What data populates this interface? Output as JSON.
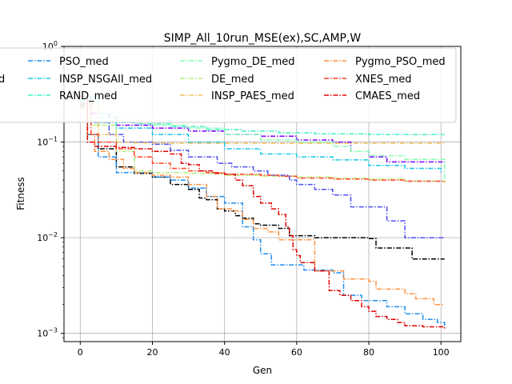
{
  "chart_data": {
    "type": "line",
    "title": "SIMP_All_10run_MSE(ex),SC,AMP,W",
    "xlabel": "Gen",
    "ylabel": "Fitness",
    "xlim": [
      -4.5,
      105.5
    ],
    "ylim": [
      0.00082,
      1.0
    ],
    "yscale": "log",
    "grid": true,
    "legend_position": "top",
    "x_ticks": [
      0,
      20,
      40,
      60,
      80,
      100
    ],
    "y_ticks": [
      {
        "value": 0.001,
        "base": "10",
        "exp": "−3"
      },
      {
        "value": 0.01,
        "base": "10",
        "exp": "−2"
      },
      {
        "value": 0.1,
        "base": "10",
        "exp": "−1"
      },
      {
        "value": 1,
        "base": "10",
        "exp": "0"
      }
    ],
    "series": [
      {
        "name": "",
        "color": "#000000",
        "dash": "solid-dot",
        "points": [
          [
            0,
            0.25
          ],
          [
            2,
            0.12
          ],
          [
            5,
            0.085
          ],
          [
            10,
            0.055
          ],
          [
            15,
            0.047
          ],
          [
            20,
            0.043
          ],
          [
            25,
            0.036
          ],
          [
            30,
            0.032
          ],
          [
            33,
            0.026
          ],
          [
            35,
            0.025
          ],
          [
            38,
            0.02
          ],
          [
            40,
            0.019
          ],
          [
            43,
            0.017
          ],
          [
            45,
            0.016
          ],
          [
            48,
            0.014
          ],
          [
            50,
            0.0135
          ],
          [
            55,
            0.0125
          ],
          [
            58,
            0.0105
          ],
          [
            60,
            0.0105
          ],
          [
            65,
            0.01
          ],
          [
            80,
            0.0098
          ],
          [
            82,
            0.0078
          ],
          [
            90,
            0.0078
          ],
          [
            92,
            0.006
          ],
          [
            101,
            0.006
          ]
        ]
      },
      {
        "name": "",
        "color": "#7a00ff",
        "dash": "solid-dot",
        "points": [
          [
            0,
            0.3
          ],
          [
            3,
            0.2
          ],
          [
            8,
            0.18
          ],
          [
            10,
            0.15
          ],
          [
            20,
            0.14
          ],
          [
            30,
            0.13
          ],
          [
            40,
            0.12
          ],
          [
            50,
            0.115
          ],
          [
            60,
            0.105
          ],
          [
            70,
            0.1
          ],
          [
            75,
            0.08
          ],
          [
            80,
            0.07
          ],
          [
            85,
            0.062
          ],
          [
            95,
            0.062
          ],
          [
            101,
            0.06
          ]
        ]
      },
      {
        "name": "",
        "color": "#4d4df5",
        "dash": "solid-dot",
        "points": [
          [
            0,
            0.28
          ],
          [
            3,
            0.16
          ],
          [
            8,
            0.12
          ],
          [
            12,
            0.1
          ],
          [
            20,
            0.095
          ],
          [
            25,
            0.082
          ],
          [
            30,
            0.07
          ],
          [
            38,
            0.06
          ],
          [
            42,
            0.055
          ],
          [
            48,
            0.05
          ],
          [
            52,
            0.045
          ],
          [
            58,
            0.04
          ],
          [
            60,
            0.036
          ],
          [
            65,
            0.032
          ],
          [
            70,
            0.028
          ],
          [
            75,
            0.021
          ],
          [
            80,
            0.021
          ],
          [
            85,
            0.015
          ],
          [
            88,
            0.015
          ],
          [
            90,
            0.01
          ],
          [
            101,
            0.01
          ]
        ]
      },
      {
        "name": "PSO_med",
        "color": "#1f8ef0",
        "dash": "solid-dot",
        "points": [
          [
            0,
            0.24
          ],
          [
            2,
            0.12
          ],
          [
            5,
            0.07
          ],
          [
            10,
            0.048
          ],
          [
            20,
            0.043
          ],
          [
            25,
            0.04
          ],
          [
            30,
            0.033
          ],
          [
            35,
            0.027
          ],
          [
            40,
            0.023
          ],
          [
            45,
            0.013
          ],
          [
            48,
            0.0095
          ],
          [
            50,
            0.0068
          ],
          [
            53,
            0.0052
          ],
          [
            60,
            0.0052
          ],
          [
            62,
            0.0046
          ],
          [
            70,
            0.0043
          ],
          [
            73,
            0.0025
          ],
          [
            78,
            0.0022
          ],
          [
            85,
            0.0019
          ],
          [
            90,
            0.0016
          ],
          [
            95,
            0.0014
          ],
          [
            99,
            0.0013
          ],
          [
            101,
            0.00115
          ]
        ]
      },
      {
        "name": "INSP_NSGAII_med",
        "color": "#18c8e8",
        "dash": "solid-dot",
        "points": [
          [
            0,
            0.26
          ],
          [
            3,
            0.16
          ],
          [
            10,
            0.14
          ],
          [
            20,
            0.12
          ],
          [
            30,
            0.1
          ],
          [
            40,
            0.085
          ],
          [
            50,
            0.075
          ],
          [
            60,
            0.07
          ],
          [
            70,
            0.065
          ],
          [
            80,
            0.057
          ],
          [
            90,
            0.053
          ],
          [
            97,
            0.053
          ],
          [
            100,
            0.047
          ]
        ]
      },
      {
        "name": "RAND_med",
        "color": "#40f0c8",
        "dash": "solid-dot",
        "points": [
          [
            0,
            0.28
          ],
          [
            5,
            0.18
          ],
          [
            10,
            0.16
          ],
          [
            15,
            0.155
          ],
          [
            25,
            0.145
          ],
          [
            35,
            0.135
          ],
          [
            45,
            0.13
          ],
          [
            55,
            0.125
          ],
          [
            65,
            0.122
          ],
          [
            80,
            0.12
          ],
          [
            101,
            0.12
          ]
        ]
      },
      {
        "name": "Pygmo_DE_med",
        "color": "#80ffb0",
        "dash": "solid-dot",
        "points": [
          [
            0,
            0.3
          ],
          [
            5,
            0.2
          ],
          [
            10,
            0.18
          ],
          [
            20,
            0.15
          ],
          [
            30,
            0.14
          ],
          [
            40,
            0.12
          ],
          [
            50,
            0.105
          ],
          [
            60,
            0.1
          ],
          [
            70,
            0.09
          ],
          [
            75,
            0.08
          ],
          [
            80,
            0.072
          ],
          [
            90,
            0.066
          ],
          [
            101,
            0.04
          ]
        ]
      },
      {
        "name": "DE_med",
        "color": "#b8f078",
        "dash": "solid-dot",
        "points": [
          [
            0,
            0.27
          ],
          [
            3,
            0.15
          ],
          [
            10,
            0.08
          ],
          [
            15,
            0.05
          ],
          [
            20,
            0.048
          ],
          [
            30,
            0.047
          ],
          [
            40,
            0.045
          ],
          [
            50,
            0.044
          ],
          [
            60,
            0.043
          ],
          [
            70,
            0.042
          ],
          [
            80,
            0.041
          ],
          [
            90,
            0.039
          ],
          [
            101,
            0.037
          ]
        ]
      },
      {
        "name": "INSP_PAES_med",
        "color": "#f0c060",
        "dash": "solid-dot",
        "points": [
          [
            0,
            0.25
          ],
          [
            5,
            0.12
          ],
          [
            10,
            0.1
          ],
          [
            15,
            0.098
          ],
          [
            25,
            0.097
          ],
          [
            101,
            0.097
          ]
        ]
      },
      {
        "name": "Pygmo_PSO_med",
        "color": "#ff9040",
        "dash": "solid-dot",
        "points": [
          [
            0,
            0.23
          ],
          [
            2,
            0.12
          ],
          [
            4,
            0.08
          ],
          [
            8,
            0.066
          ],
          [
            12,
            0.053
          ],
          [
            15,
            0.048
          ],
          [
            20,
            0.045
          ],
          [
            25,
            0.043
          ],
          [
            30,
            0.036
          ],
          [
            35,
            0.027
          ],
          [
            38,
            0.02
          ],
          [
            42,
            0.019
          ],
          [
            45,
            0.0155
          ],
          [
            48,
            0.0125
          ],
          [
            52,
            0.0115
          ],
          [
            55,
            0.0095
          ],
          [
            58,
            0.0095
          ],
          [
            64,
            0.0095
          ],
          [
            65,
            0.0045
          ],
          [
            70,
            0.0045
          ],
          [
            73,
            0.0037
          ],
          [
            75,
            0.0037
          ],
          [
            80,
            0.0035
          ],
          [
            82,
            0.0029
          ],
          [
            85,
            0.0029
          ],
          [
            90,
            0.0026
          ],
          [
            93,
            0.0023
          ],
          [
            96,
            0.0023
          ],
          [
            98,
            0.002
          ],
          [
            101,
            0.002
          ]
        ]
      },
      {
        "name": "XNES_med",
        "color": "#ff4020",
        "dash": "solid-dot",
        "points": [
          [
            0,
            0.25
          ],
          [
            3,
            0.12
          ],
          [
            5,
            0.1
          ],
          [
            10,
            0.085
          ],
          [
            15,
            0.07
          ],
          [
            20,
            0.06
          ],
          [
            25,
            0.053
          ],
          [
            30,
            0.05
          ],
          [
            35,
            0.048
          ],
          [
            40,
            0.046
          ],
          [
            45,
            0.046
          ],
          [
            50,
            0.045
          ],
          [
            55,
            0.044
          ],
          [
            60,
            0.042
          ],
          [
            70,
            0.041
          ],
          [
            80,
            0.04
          ],
          [
            90,
            0.039
          ],
          [
            101,
            0.038
          ]
        ]
      },
      {
        "name": "CMAES_med",
        "color": "#e00000",
        "dash": "solid-dot",
        "points": [
          [
            0,
            0.3
          ],
          [
            2,
            0.1
          ],
          [
            4,
            0.09
          ],
          [
            10,
            0.088
          ],
          [
            15,
            0.085
          ],
          [
            20,
            0.08
          ],
          [
            25,
            0.075
          ],
          [
            28,
            0.06
          ],
          [
            30,
            0.058
          ],
          [
            33,
            0.05
          ],
          [
            37,
            0.047
          ],
          [
            40,
            0.046
          ],
          [
            43,
            0.04
          ],
          [
            45,
            0.035
          ],
          [
            48,
            0.027
          ],
          [
            50,
            0.023
          ],
          [
            53,
            0.02
          ],
          [
            55,
            0.0175
          ],
          [
            57,
            0.013
          ],
          [
            58,
            0.0105
          ],
          [
            59,
            0.0075
          ],
          [
            60,
            0.0065
          ],
          [
            61,
            0.0055
          ],
          [
            63,
            0.0055
          ],
          [
            65,
            0.0045
          ],
          [
            68,
            0.0045
          ],
          [
            69,
            0.0028
          ],
          [
            72,
            0.0025
          ],
          [
            75,
            0.0022
          ],
          [
            78,
            0.0019
          ],
          [
            80,
            0.0017
          ],
          [
            82,
            0.0015
          ],
          [
            85,
            0.0014
          ],
          [
            88,
            0.0013
          ],
          [
            90,
            0.0012
          ],
          [
            95,
            0.00117
          ],
          [
            101,
            0.00112
          ]
        ]
      }
    ]
  }
}
